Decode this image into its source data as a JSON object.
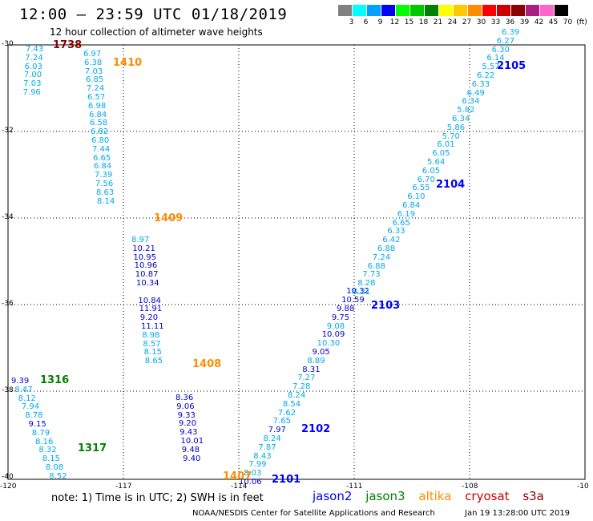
{
  "header": {
    "title": "12:00 – 23:59 UTC 01/18/2019",
    "subtitle": "12 hour collection of altimeter wave heights"
  },
  "legend": {
    "unit": "(ft)",
    "bins": [
      {
        "label": "3",
        "color": "#808080"
      },
      {
        "label": "6",
        "color": "#00ffff"
      },
      {
        "label": "9",
        "color": "#00a0ff"
      },
      {
        "label": "12",
        "color": "#0000ff"
      },
      {
        "label": "15",
        "color": "#00ff00"
      },
      {
        "label": "18",
        "color": "#00c800"
      },
      {
        "label": "21",
        "color": "#008000"
      },
      {
        "label": "24",
        "color": "#ffff00"
      },
      {
        "label": "27",
        "color": "#ffc800"
      },
      {
        "label": "30",
        "color": "#ff8c00"
      },
      {
        "label": "33",
        "color": "#ff0000"
      },
      {
        "label": "36",
        "color": "#cc0000"
      },
      {
        "label": "39",
        "color": "#8b0000"
      },
      {
        "label": "42",
        "color": "#aa2080"
      },
      {
        "label": "45",
        "color": "#ff66cc"
      },
      {
        "label": "70",
        "color": "#000000"
      }
    ]
  },
  "axes": {
    "y_labels": [
      "-30",
      "-32",
      "-34",
      "-36",
      "-38",
      "-40"
    ],
    "x_labels": [
      "-120",
      "-117",
      "-114",
      "-111",
      "-108",
      "-10"
    ]
  },
  "colors": {
    "light": "#00aaee",
    "dark": "#0000cc",
    "jason2": "#0000ff",
    "jason3": "#008000",
    "altika": "#ff8c00",
    "cryosat": "#cc0000",
    "s3a": "#8b0000"
  },
  "passes": [
    {
      "label": "1738",
      "sat": "s3a"
    },
    {
      "label": "1410",
      "sat": "altika"
    },
    {
      "label": "2105",
      "sat": "jason2"
    },
    {
      "label": "1409",
      "sat": "altika"
    },
    {
      "label": "2104",
      "sat": "jason2"
    },
    {
      "label": "2103",
      "sat": "jason2"
    },
    {
      "label": "1408",
      "sat": "altika"
    },
    {
      "label": "1316",
      "sat": "jason3"
    },
    {
      "label": "2102",
      "sat": "jason2"
    },
    {
      "label": "1317",
      "sat": "jason3"
    },
    {
      "label": "1407",
      "sat": "altika"
    },
    {
      "label": "2101",
      "sat": "jason2"
    }
  ],
  "tracks": {
    "t1738": {
      "x0": 32,
      "y0": 56,
      "dx": -0.7,
      "vals": [
        "7.43",
        "7.24",
        "6.03",
        "7.00",
        "7.03",
        "7.96"
      ],
      "shade": "light"
    },
    "t1410": {
      "x0": 104,
      "y0": 62,
      "dx": 1.0,
      "vals": [
        "6.97",
        "6.38",
        "7.03",
        "6.85",
        "7.24",
        "6.57",
        "6.98",
        "6.84",
        "6.58",
        "6.82",
        "6.80",
        "7.44",
        "6.65",
        "6.84",
        "7.39",
        "7.56",
        "8.63",
        "8.14"
      ],
      "shade": "light"
    },
    "t1409": {
      "x0": 164,
      "y0": 294,
      "dx": 1.2,
      "vals": [
        "8.97",
        "10.21",
        "10.95",
        "10.96",
        "10.87",
        "10.34",
        "",
        "10.84",
        "11.91",
        "9.20",
        "11.11",
        "8.98",
        "8.57",
        "8.15",
        "8.65"
      ],
      "dark_from": 1
    },
    "t1408": {
      "x0": 219,
      "y0": 491,
      "dx": 1.3,
      "vals": [
        "8.36",
        "9.06",
        "9.33",
        "9.20",
        "9.43",
        "10.01",
        "9.48",
        "9.40"
      ],
      "shade": "dark"
    },
    "t1316": {
      "x0": 14,
      "y0": 470,
      "dx": 4.3,
      "vals": [
        "9.39",
        "8.47",
        "8.12",
        "7.94",
        "8.78",
        "9.15",
        "8.79",
        "8.16",
        "8.32",
        "8.15",
        "8.08",
        "8.52"
      ],
      "shade": "light"
    },
    "t2101": {
      "x0": 298,
      "y0": 596,
      "dx": 6.1,
      "vals": [
        "10.06",
        "8.03",
        "7.99",
        "8.43",
        "7.87",
        "8.24",
        "7.97",
        "7.65",
        "7.62",
        "8.54",
        "8.24",
        "7.28",
        "7.27",
        "8.31",
        "8.89",
        "9.05",
        "10.30",
        "10.09",
        "9.08",
        "9.75",
        "9.88",
        "10.59",
        "10.32"
      ],
      "shade": "mixed"
    },
    "t2104": {
      "x0": 440,
      "y0": 359,
      "dx": 6.2,
      "vals": [
        "8.31",
        "8.28",
        "7.73",
        "6.88",
        "7.24",
        "6.88",
        "6.42",
        "6.33",
        "6.65",
        "6.19",
        "6.84",
        "6.10",
        "6.55",
        "6.70",
        "6.05",
        "5.64",
        "6.05",
        "6.01",
        "5.70",
        "5.86",
        "6.34",
        "5.82",
        "6.34",
        "6.49",
        "6.33",
        "6.22",
        "5.57",
        "6.14",
        "6.30",
        "6.27",
        "6.39"
      ],
      "shade": "light"
    }
  },
  "note": "note:  1) Time is in UTC;  2) SWH is in feet",
  "satellites": [
    "jason2",
    "jason3",
    "altika",
    "cryosat",
    "s3a"
  ],
  "credit": "NOAA/NESDIS Center for Satellite Applications and Research",
  "timestamp": "Jan 19 13:28:00 UTC 2019"
}
